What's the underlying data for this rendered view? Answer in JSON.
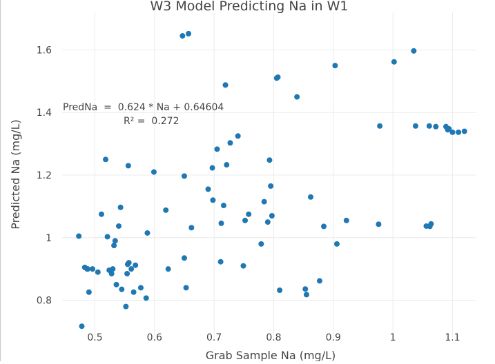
{
  "chart_data": {
    "type": "scatter",
    "title": "W3 Model Predicting Na in W1",
    "xlabel": "Grab Sample Na (mg/L)",
    "ylabel": "Predicted Na (mg/L)",
    "xlim": [
      0.445,
      1.14
    ],
    "ylim": [
      0.68,
      1.72
    ],
    "x_ticks": [
      0.5,
      0.6,
      0.7,
      0.8,
      0.9,
      1,
      1.1
    ],
    "x_tick_labels": [
      "0.5",
      "0.6",
      "0.7",
      "0.8",
      "0.9",
      "1",
      "1.1"
    ],
    "y_ticks": [
      0.8,
      1,
      1.2,
      1.4,
      1.6
    ],
    "y_tick_labels": [
      "0.8",
      "1",
      "1.2",
      "1.4",
      "1.6"
    ],
    "grid": true,
    "marker_color": "#1f77b4",
    "annotation": {
      "equation": "PredNa  =  0.624 * Na + 0.64604",
      "r_squared": "R² =  0.272"
    },
    "series": [
      {
        "x": [
          0.473,
          0.478,
          0.483,
          0.487,
          0.49,
          0.496,
          0.505,
          0.488,
          0.511,
          0.521,
          0.524,
          0.528,
          0.53,
          0.532,
          0.534,
          0.536,
          0.54,
          0.543,
          0.545,
          0.552,
          0.554,
          0.555,
          0.557,
          0.561,
          0.565,
          0.568,
          0.577,
          0.586,
          0.588,
          0.518,
          0.556,
          0.599,
          0.619,
          0.623,
          0.647,
          0.65,
          0.65,
          0.653,
          0.657,
          0.662,
          0.69,
          0.698,
          0.697,
          0.705,
          0.711,
          0.712,
          0.716,
          0.719,
          0.721,
          0.727,
          0.74,
          0.749,
          0.752,
          0.758,
          0.779,
          0.784,
          0.79,
          0.793,
          0.795,
          0.797,
          0.805,
          0.807,
          0.81,
          0.839,
          0.853,
          0.855,
          0.862,
          0.877,
          0.884,
          0.903,
          0.906,
          0.922,
          0.976,
          0.978,
          1.002,
          1.035,
          1.038,
          1.056,
          1.061,
          1.062,
          1.064,
          1.072,
          1.089,
          1.092,
          1.094,
          1.1,
          1.11,
          1.12
        ],
        "y": [
          1.005,
          0.717,
          0.905,
          0.9,
          0.826,
          0.9,
          0.89,
          0.9,
          1.075,
          1.003,
          0.896,
          0.885,
          0.9,
          0.975,
          0.99,
          0.85,
          1.037,
          1.097,
          0.835,
          0.78,
          0.885,
          0.915,
          0.92,
          0.9,
          0.826,
          0.912,
          0.84,
          0.807,
          1.015,
          1.25,
          1.23,
          1.21,
          1.088,
          0.9,
          1.645,
          0.935,
          1.197,
          0.84,
          1.652,
          1.032,
          1.155,
          1.12,
          1.223,
          1.283,
          0.923,
          1.046,
          1.103,
          1.488,
          1.233,
          1.303,
          1.325,
          0.91,
          1.055,
          1.075,
          0.98,
          1.115,
          1.05,
          1.248,
          1.165,
          1.07,
          1.51,
          1.513,
          0.832,
          1.45,
          0.836,
          0.818,
          1.13,
          0.862,
          1.036,
          1.55,
          0.98,
          1.055,
          1.043,
          1.357,
          1.562,
          1.597,
          1.357,
          1.037,
          1.357,
          1.036,
          1.044,
          1.355,
          1.355,
          1.345,
          1.348,
          1.337,
          1.337,
          1.34
        ]
      }
    ]
  }
}
